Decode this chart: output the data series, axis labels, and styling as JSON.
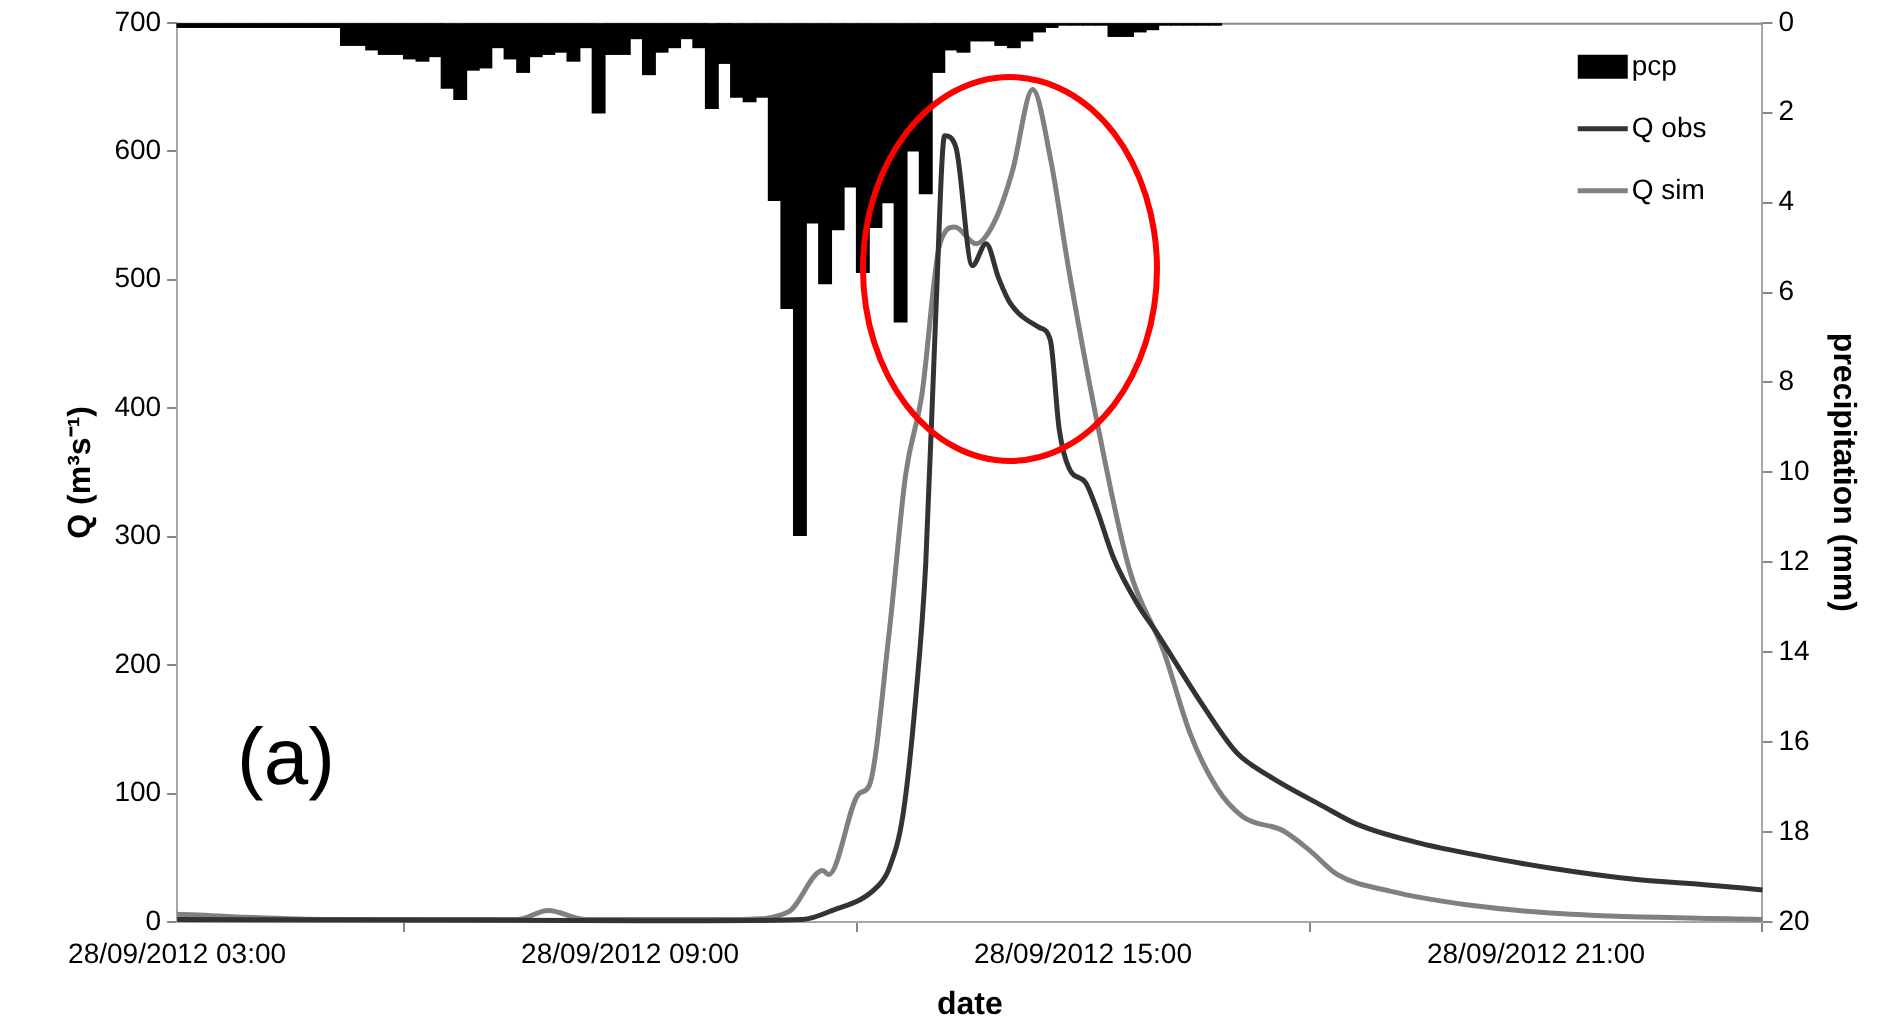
{
  "chart_data": {
    "type": "line",
    "xlabel": "date",
    "ylabel": "Q (m³s⁻¹)",
    "y2label": "precipitation (mm)",
    "xlim": [
      "2012-09-28T03:00",
      "2012-09-29T00:00"
    ],
    "xticks": [
      {
        "value": "2012-09-28T03:00",
        "label": "28/09/2012 03:00"
      },
      {
        "value": "2012-09-28T09:00",
        "label": "28/09/2012 09:00"
      },
      {
        "value": "2012-09-28T15:00",
        "label": "28/09/2012 15:00"
      },
      {
        "value": "2012-09-28T21:00",
        "label": "28/09/2012 21:00"
      }
    ],
    "ylim": [
      0,
      700
    ],
    "yticks": [
      0,
      100,
      200,
      300,
      400,
      500,
      600,
      700
    ],
    "y2lim": [
      20,
      0
    ],
    "y2ticks": [
      0,
      2,
      4,
      6,
      8,
      10,
      12,
      14,
      16,
      18,
      20
    ],
    "grid": false,
    "legend": "top right",
    "marker": "none",
    "line_style": "solid",
    "annotations": [
      "(a)"
    ],
    "series": [
      {
        "name": "pcp",
        "type": "bar",
        "axis": "y2",
        "color": "#000000",
        "x": [
          "2012-09-28T03:05",
          "2012-09-28T03:15",
          "2012-09-28T03:25",
          "2012-09-28T03:35",
          "2012-09-28T03:45",
          "2012-09-28T03:55",
          "2012-09-28T04:05",
          "2012-09-28T04:15",
          "2012-09-28T04:25",
          "2012-09-28T04:35",
          "2012-09-28T04:45",
          "2012-09-28T04:55",
          "2012-09-28T05:05",
          "2012-09-28T05:15",
          "2012-09-28T05:25",
          "2012-09-28T05:35",
          "2012-09-28T05:45",
          "2012-09-28T05:55",
          "2012-09-28T06:05",
          "2012-09-28T06:15",
          "2012-09-28T06:25",
          "2012-09-28T06:35",
          "2012-09-28T06:45",
          "2012-09-28T06:55",
          "2012-09-28T07:05",
          "2012-09-28T07:15",
          "2012-09-28T07:25",
          "2012-09-28T07:35",
          "2012-09-28T07:45",
          "2012-09-28T07:55",
          "2012-09-28T08:05",
          "2012-09-28T08:15",
          "2012-09-28T08:25",
          "2012-09-28T08:35",
          "2012-09-28T08:45",
          "2012-09-28T08:55",
          "2012-09-28T09:05",
          "2012-09-28T09:15",
          "2012-09-28T09:25",
          "2012-09-28T09:35",
          "2012-09-28T09:45",
          "2012-09-28T09:55",
          "2012-09-28T10:05",
          "2012-09-28T10:15",
          "2012-09-28T10:25",
          "2012-09-28T10:35",
          "2012-09-28T10:45",
          "2012-09-28T10:55",
          "2012-09-28T11:05",
          "2012-09-28T11:15",
          "2012-09-28T11:25",
          "2012-09-28T11:35",
          "2012-09-28T11:45",
          "2012-09-28T11:55",
          "2012-09-28T12:05",
          "2012-09-28T12:15",
          "2012-09-28T12:25",
          "2012-09-28T12:35",
          "2012-09-28T12:45",
          "2012-09-28T12:55",
          "2012-09-28T13:05",
          "2012-09-28T13:15",
          "2012-09-28T13:25",
          "2012-09-28T13:35",
          "2012-09-28T13:45",
          "2012-09-28T13:55",
          "2012-09-28T14:05",
          "2012-09-28T14:15",
          "2012-09-28T14:25",
          "2012-09-28T14:35",
          "2012-09-28T14:45",
          "2012-09-28T14:55",
          "2012-09-28T15:05",
          "2012-09-28T15:15",
          "2012-09-28T15:25",
          "2012-09-28T15:35",
          "2012-09-28T15:45",
          "2012-09-28T15:55",
          "2012-09-28T16:05",
          "2012-09-28T16:15",
          "2012-09-28T16:25",
          "2012-09-28T16:35",
          "2012-09-28T16:45"
        ],
        "values": [
          0.1,
          0.1,
          0.1,
          0.1,
          0.1,
          0.1,
          0.1,
          0.1,
          0.1,
          0.1,
          0.1,
          0.1,
          0.1,
          0.5,
          0.5,
          0.6,
          0.7,
          0.7,
          0.8,
          0.85,
          0.75,
          1.45,
          1.7,
          1.05,
          1.0,
          0.55,
          0.8,
          1.1,
          0.75,
          0.7,
          0.65,
          0.85,
          0.55,
          2.0,
          0.7,
          0.7,
          0.35,
          1.15,
          0.65,
          0.55,
          0.35,
          0.55,
          1.9,
          0.9,
          1.65,
          1.75,
          1.65,
          3.95,
          6.35,
          11.4,
          4.45,
          5.8,
          4.6,
          3.65,
          5.55,
          4.55,
          4.0,
          6.65,
          2.85,
          3.8,
          1.1,
          0.6,
          0.65,
          0.4,
          0.4,
          0.5,
          0.55,
          0.4,
          0.2,
          0.1,
          0.05,
          0.05,
          0.05,
          0.05,
          0.3,
          0.3,
          0.2,
          0.15,
          0.05,
          0.05,
          0.05,
          0.05,
          0.05
        ]
      },
      {
        "name": "Q obs",
        "color": "#333333",
        "x": [
          "2012-09-28T03:00",
          "2012-09-28T10:00",
          "2012-09-28T11:17",
          "2012-09-28T11:38",
          "2012-09-28T12:18",
          "2012-09-28T12:26",
          "2012-09-28T12:37",
          "2012-09-28T12:47",
          "2012-09-28T12:55",
          "2012-09-28T13:03",
          "2012-09-28T13:10",
          "2012-09-28T13:19",
          "2012-09-28T13:32",
          "2012-09-28T13:43",
          "2012-09-28T13:53",
          "2012-09-28T14:02",
          "2012-09-28T14:25",
          "2012-09-28T14:34",
          "2012-09-28T14:41",
          "2012-09-28T14:49",
          "2012-09-28T15:02",
          "2012-09-28T15:11",
          "2012-09-28T15:24",
          "2012-09-28T15:43",
          "2012-09-28T15:58",
          "2012-09-28T16:35",
          "2012-09-28T17:02",
          "2012-09-28T17:29",
          "2012-09-28T18:11",
          "2012-09-28T18:38",
          "2012-09-28T19:25",
          "2012-09-28T20:08",
          "2012-09-28T21:11",
          "2012-09-28T22:20",
          "2012-09-28T23:14",
          "2012-09-29T00:00"
        ],
        "values": [
          2,
          1,
          2,
          8,
          29,
          42,
          84,
          174,
          279,
          474,
          612,
          603,
          511,
          528,
          501,
          482,
          463,
          453,
          384,
          353,
          342,
          321,
          284,
          248,
          226,
          169,
          132,
          113,
          90,
          76,
          62,
          53,
          42,
          33,
          29,
          25
        ]
      },
      {
        "name": "Q sim",
        "color": "#808080",
        "x": [
          "2012-09-28T03:00",
          "2012-09-28T05:00",
          "2012-09-28T07:30",
          "2012-09-28T07:55",
          "2012-09-28T08:24",
          "2012-09-28T10:29",
          "2012-09-28T11:06",
          "2012-09-28T11:33",
          "2012-09-28T11:38",
          "2012-09-28T12:02",
          "2012-09-28T12:10",
          "2012-09-28T12:26",
          "2012-09-28T12:39",
          "2012-09-28T12:52",
          "2012-09-28T13:06",
          "2012-09-28T13:18",
          "2012-09-28T13:35",
          "2012-09-28T13:51",
          "2012-09-28T14:04",
          "2012-09-28T14:20",
          "2012-09-28T14:34",
          "2012-09-28T14:49",
          "2012-09-28T15:11",
          "2012-09-28T15:37",
          "2012-09-28T16:04",
          "2012-09-28T16:25",
          "2012-09-28T16:46",
          "2012-09-28T17:07",
          "2012-09-28T17:39",
          "2012-09-28T18:01",
          "2012-09-28T18:22",
          "2012-09-28T19:04",
          "2012-09-28T20:08",
          "2012-09-28T21:28",
          "2012-09-29T00:00"
        ],
        "values": [
          6,
          2,
          2,
          9,
          2,
          2,
          8,
          40,
          37,
          100,
          106,
          226,
          348,
          411,
          527,
          541,
          528,
          548,
          585,
          648,
          595,
          506,
          390,
          274,
          211,
          147,
          105,
          82,
          71,
          55,
          37,
          24,
          13,
          6,
          2
        ]
      }
    ]
  }
}
